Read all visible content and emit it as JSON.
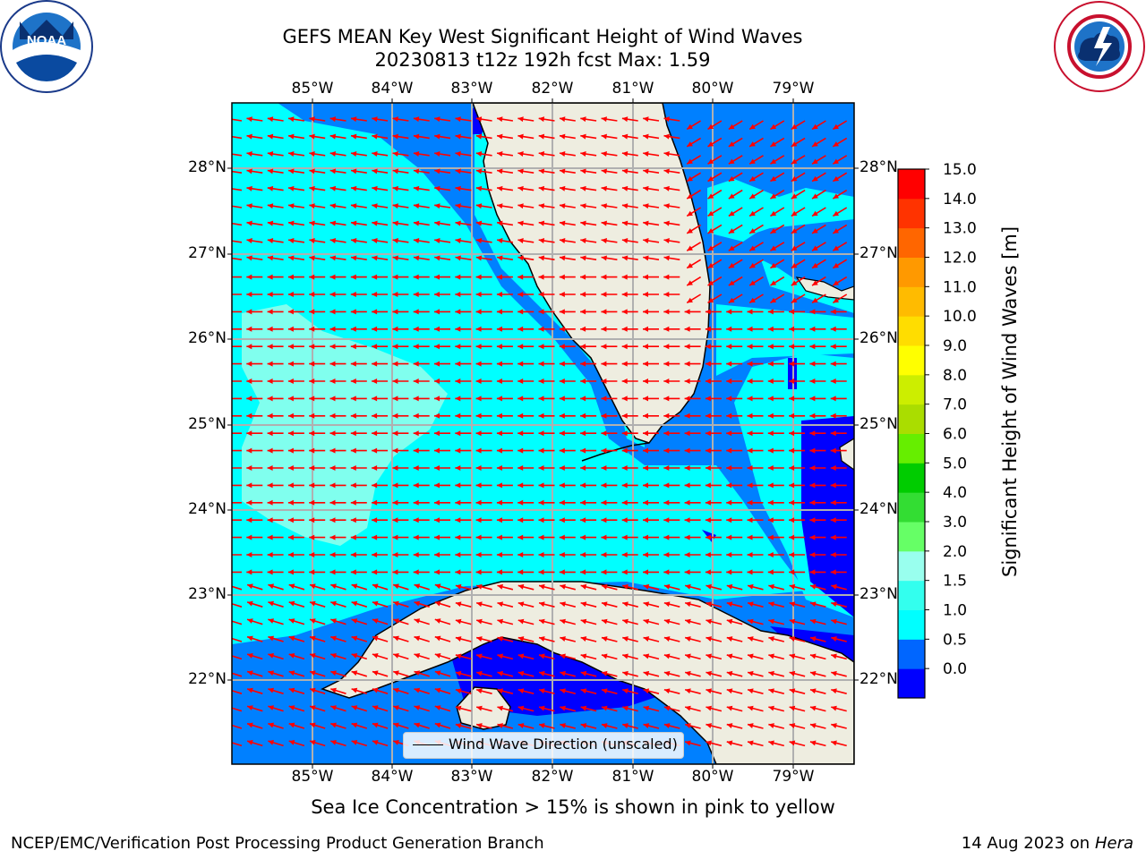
{
  "title_line1": "GEFS MEAN Key West Significant Height of Wind Waves",
  "title_line2": "20230813 t12z 192h fcst   Max: 1.59",
  "longitude_labels": [
    "85°W",
    "84°W",
    "83°W",
    "82°W",
    "81°W",
    "80°W",
    "79°W"
  ],
  "latitude_labels": [
    "28°N",
    "27°N",
    "26°N",
    "25°N",
    "24°N",
    "23°N",
    "22°N"
  ],
  "colorbar": {
    "title": "Significant Height of Wind Waves [m]",
    "ticks": [
      "15.0",
      "14.0",
      "13.0",
      "12.0",
      "11.0",
      "10.0",
      "9.0",
      "8.0",
      "7.0",
      "6.0",
      "5.0",
      "4.0",
      "3.0",
      "2.0",
      "1.5",
      "1.0",
      "0.5",
      "0.0"
    ],
    "colors_bottom_to_top": [
      "#0000ff",
      "#0066ff",
      "#00ffff",
      "#33ffee",
      "#99ffee",
      "#66ff66",
      "#33dd33",
      "#00cc00",
      "#66ee00",
      "#aadd00",
      "#ccee00",
      "#ffff00",
      "#ffdd00",
      "#ffbb00",
      "#ff9900",
      "#ff6600",
      "#ff3300",
      "#ff0000"
    ]
  },
  "legend_label": "Wind Wave Direction (unscaled)",
  "ice_note": "Sea Ice Concentration > 15% is shown in pink to yellow",
  "footer_left": "NCEP/EMC/Verification Post Processing Product Generation Branch",
  "footer_right_date": "14 Aug 2023 on",
  "footer_right_host": "Hera",
  "colors": {
    "land": "#eeede0",
    "sea_high": "#00ffff",
    "sea_mid": "#0080ff",
    "sea_low": "#0000ff",
    "sea_peak": "#80ffee",
    "arrow": "#ff0000",
    "grid": "#b0b0b0"
  }
}
